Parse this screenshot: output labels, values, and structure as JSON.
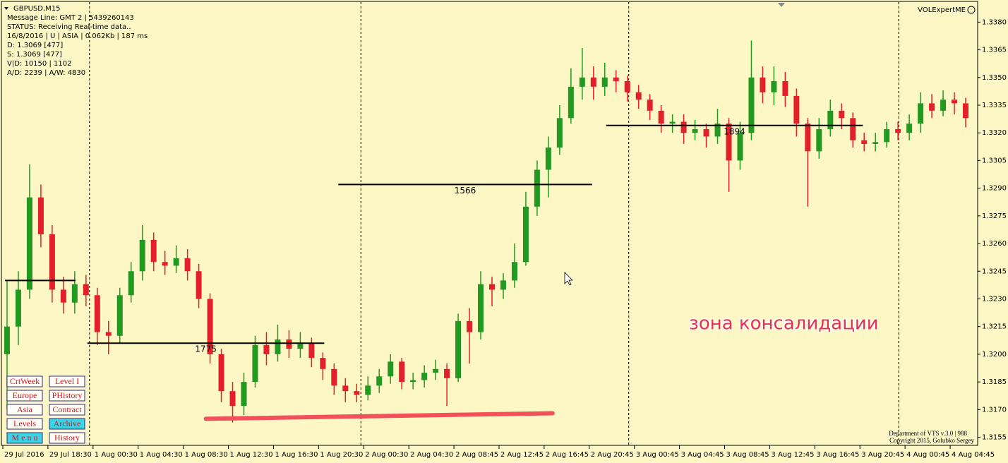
{
  "chart_data": {
    "type": "candlestick",
    "title": "GBPUSD,M15",
    "indicator": "VOLExpertME",
    "ylim": [
      1.3151,
      1.3392
    ],
    "yticks": [
      {
        "value": 1.3155,
        "label": "1.3155"
      },
      {
        "value": 1.317,
        "label": "1.3170"
      },
      {
        "value": 1.3185,
        "label": "1.3185"
      },
      {
        "value": 1.32,
        "label": "1.3200"
      },
      {
        "value": 1.3215,
        "label": "1.3215"
      },
      {
        "value": 1.323,
        "label": "1.3230"
      },
      {
        "value": 1.3245,
        "label": "1.3245"
      },
      {
        "value": 1.326,
        "label": "1.3260"
      },
      {
        "value": 1.3275,
        "label": "1.3275"
      },
      {
        "value": 1.329,
        "label": "1.3290"
      },
      {
        "value": 1.3305,
        "label": "1.3305"
      },
      {
        "value": 1.332,
        "label": "1.3320"
      },
      {
        "value": 1.3335,
        "label": "1.3335"
      },
      {
        "value": 1.335,
        "label": "1.3350"
      },
      {
        "value": 1.3365,
        "label": "1.3365"
      },
      {
        "value": 1.338,
        "label": "1.3380"
      }
    ],
    "xlim": [
      0,
      86.5625
    ],
    "xticks": [
      {
        "value": 0.125,
        "label": "29 Jul 2016"
      },
      {
        "value": 4.125,
        "label": "29 Jul 18:30"
      },
      {
        "value": 8.125,
        "label": "1 Aug 00:30"
      },
      {
        "value": 12.125,
        "label": "1 Aug 04:30"
      },
      {
        "value": 16.125,
        "label": "1 Aug 08:30"
      },
      {
        "value": 20.125,
        "label": "1 Aug 12:30"
      },
      {
        "value": 24.125,
        "label": "1 Aug 16:30"
      },
      {
        "value": 28.125,
        "label": "1 Aug 20:30"
      },
      {
        "value": 32.125,
        "label": "2 Aug 00:30"
      },
      {
        "value": 36.125,
        "label": "2 Aug 04:30"
      },
      {
        "value": 40.125,
        "label": "2 Aug 08:45"
      },
      {
        "value": 44.125,
        "label": "2 Aug 12:45"
      },
      {
        "value": 48.125,
        "label": "2 Aug 16:45"
      },
      {
        "value": 52.125,
        "label": "2 Aug 20:45"
      },
      {
        "value": 56.125,
        "label": "3 Aug 00:45"
      },
      {
        "value": 60.125,
        "label": "3 Aug 04:45"
      },
      {
        "value": 64.125,
        "label": "3 Aug 08:45"
      },
      {
        "value": 68.125,
        "label": "3 Aug 12:45"
      },
      {
        "value": 72.125,
        "label": "3 Aug 16:45"
      },
      {
        "value": 76.125,
        "label": "3 Aug 20:45"
      },
      {
        "value": 80.125,
        "label": "4 Aug 00:45"
      },
      {
        "value": 84.125,
        "label": "4 Aug 04:45"
      }
    ],
    "up_color": "#229922",
    "down_color": "#e3202a",
    "open": [
      1.32,
      1.3215,
      1.3235,
      1.3285,
      1.3265,
      1.3235,
      1.3228,
      1.3238,
      1.3232,
      1.3212,
      1.321,
      1.3232,
      1.3245,
      1.3262,
      1.325,
      1.3248,
      1.3252,
      1.3245,
      1.323,
      1.32,
      1.318,
      1.3172,
      1.3185,
      1.3205,
      1.32,
      1.3208,
      1.3203,
      1.3206,
      1.3198,
      1.3192,
      1.3183,
      1.318,
      1.3178,
      1.3183,
      1.3188,
      1.3196,
      1.3185,
      1.3186,
      1.319,
      1.3192,
      1.3187,
      1.3218,
      1.3212,
      1.3238,
      1.3235,
      1.324,
      1.325,
      1.328,
      1.33,
      1.3312,
      1.3328,
      1.3345,
      1.335,
      1.3345,
      1.335,
      1.3348,
      1.3342,
      1.3338,
      1.3332,
      1.3325,
      1.3326,
      1.332,
      1.3322,
      1.3318,
      1.3325,
      1.3305,
      1.332,
      1.335,
      1.3342,
      1.3348,
      1.334,
      1.3325,
      1.331,
      1.3322,
      1.3332,
      1.3328,
      1.3316,
      1.3314,
      1.3315,
      1.3322,
      1.332,
      1.3325,
      1.3336,
      1.3332,
      1.3338,
      1.3336
    ],
    "high": [
      1.324,
      1.3245,
      1.3303,
      1.3292,
      1.327,
      1.3242,
      1.3245,
      1.3243,
      1.3236,
      1.3218,
      1.3236,
      1.325,
      1.327,
      1.3266,
      1.3256,
      1.3259,
      1.3257,
      1.3249,
      1.3233,
      1.3203,
      1.3185,
      1.319,
      1.321,
      1.3212,
      1.3216,
      1.3213,
      1.3212,
      1.3209,
      1.3201,
      1.3195,
      1.3187,
      1.3184,
      1.3188,
      1.3192,
      1.32,
      1.3198,
      1.319,
      1.3194,
      1.3197,
      1.3195,
      1.3222,
      1.3225,
      1.3245,
      1.3242,
      1.3244,
      1.326,
      1.3288,
      1.3305,
      1.3318,
      1.3335,
      1.3355,
      1.3366,
      1.3356,
      1.3358,
      1.3354,
      1.3351,
      1.3346,
      1.3341,
      1.3335,
      1.333,
      1.333,
      1.3327,
      1.3325,
      1.3333,
      1.3328,
      1.3326,
      1.337,
      1.3356,
      1.3356,
      1.3353,
      1.3344,
      1.3328,
      1.3328,
      1.3338,
      1.3336,
      1.3331,
      1.332,
      1.332,
      1.3326,
      1.3326,
      1.333,
      1.3342,
      1.3341,
      1.3343,
      1.3342,
      1.3339
    ],
    "low": [
      1.317,
      1.3205,
      1.323,
      1.3258,
      1.3228,
      1.3222,
      1.3222,
      1.3226,
      1.3205,
      1.32,
      1.3206,
      1.3228,
      1.324,
      1.3245,
      1.3243,
      1.3244,
      1.324,
      1.3225,
      1.3195,
      1.3174,
      1.3163,
      1.3167,
      1.3182,
      1.3194,
      1.3196,
      1.3198,
      1.3198,
      1.3193,
      1.3186,
      1.3178,
      1.3174,
      1.3174,
      1.3175,
      1.3179,
      1.3184,
      1.3181,
      1.3181,
      1.3182,
      1.3186,
      1.3172,
      1.3185,
      1.3195,
      1.3208,
      1.3226,
      1.323,
      1.3236,
      1.3248,
      1.3275,
      1.3285,
      1.3308,
      1.3325,
      1.3338,
      1.3338,
      1.334,
      1.3342,
      1.3337,
      1.3333,
      1.3327,
      1.332,
      1.332,
      1.3314,
      1.3316,
      1.3312,
      1.3314,
      1.3288,
      1.33,
      1.3316,
      1.3336,
      1.3335,
      1.3334,
      1.3318,
      1.328,
      1.3306,
      1.3318,
      1.3322,
      1.3312,
      1.331,
      1.331,
      1.3312,
      1.3316,
      1.3316,
      1.332,
      1.3328,
      1.3329,
      1.333,
      1.3323
    ],
    "close": [
      1.3215,
      1.3235,
      1.3285,
      1.3265,
      1.3235,
      1.3228,
      1.3238,
      1.3232,
      1.3212,
      1.321,
      1.3232,
      1.3245,
      1.3262,
      1.325,
      1.3248,
      1.3252,
      1.3245,
      1.323,
      1.32,
      1.318,
      1.3172,
      1.3185,
      1.3205,
      1.32,
      1.3208,
      1.3203,
      1.3206,
      1.3198,
      1.3192,
      1.3183,
      1.318,
      1.3178,
      1.3183,
      1.3188,
      1.3196,
      1.3185,
      1.3186,
      1.319,
      1.3192,
      1.3187,
      1.3218,
      1.3212,
      1.3238,
      1.3235,
      1.324,
      1.325,
      1.328,
      1.33,
      1.3312,
      1.3328,
      1.3345,
      1.335,
      1.3345,
      1.335,
      1.3348,
      1.3342,
      1.3338,
      1.3332,
      1.3325,
      1.3326,
      1.332,
      1.3322,
      1.3318,
      1.3325,
      1.3305,
      1.332,
      1.335,
      1.3342,
      1.3348,
      1.334,
      1.3325,
      1.331,
      1.3322,
      1.3332,
      1.3328,
      1.3316,
      1.3314,
      1.3315,
      1.3322,
      1.332,
      1.3325,
      1.3336,
      1.3332,
      1.3338,
      1.3336,
      1.3328
    ],
    "day_separators": [
      7.8125,
      31.875,
      55.625,
      79.5625
    ],
    "levels": [
      {
        "price": 1.324,
        "x": [
          0.3125,
          6.5625
        ]
      },
      {
        "price": 1.3206,
        "x": [
          7.625,
          28.625
        ],
        "label": "1775"
      },
      {
        "price": 1.3292,
        "x": [
          29.875,
          52.375
        ],
        "label": "1566"
      },
      {
        "price": 1.3324,
        "x": [
          53.625,
          76.375
        ],
        "label": "1894"
      }
    ],
    "trend_line": {
      "x": [
        18.125,
        48.875
      ],
      "y": [
        1.3165,
        1.3168
      ]
    },
    "annotation": "зона консалидации"
  },
  "info": [
    "Message Line: GMT 2 | 5439260143",
    "STATUS:  Receiving Real-time data..",
    "16/8/2016 | U | ASIA | 0.062Kb | 187 ms",
    "D: 1.3069  [477]",
    "S: 1.3069  [477]",
    "V|D: 10150 | 1102",
    "A/D: 2239 | A/W: 4830"
  ],
  "buttons": [
    [
      "CrtWeek",
      "Level I"
    ],
    [
      "Europe",
      "PHistory"
    ],
    [
      "Asia",
      "Contract"
    ],
    [
      "Levels",
      "Archive"
    ],
    [
      "M e n u",
      "History"
    ]
  ],
  "footer": [
    "Department of VTS  v.3.0 | 988",
    "Copyright 2015, Golubko Sergey"
  ]
}
